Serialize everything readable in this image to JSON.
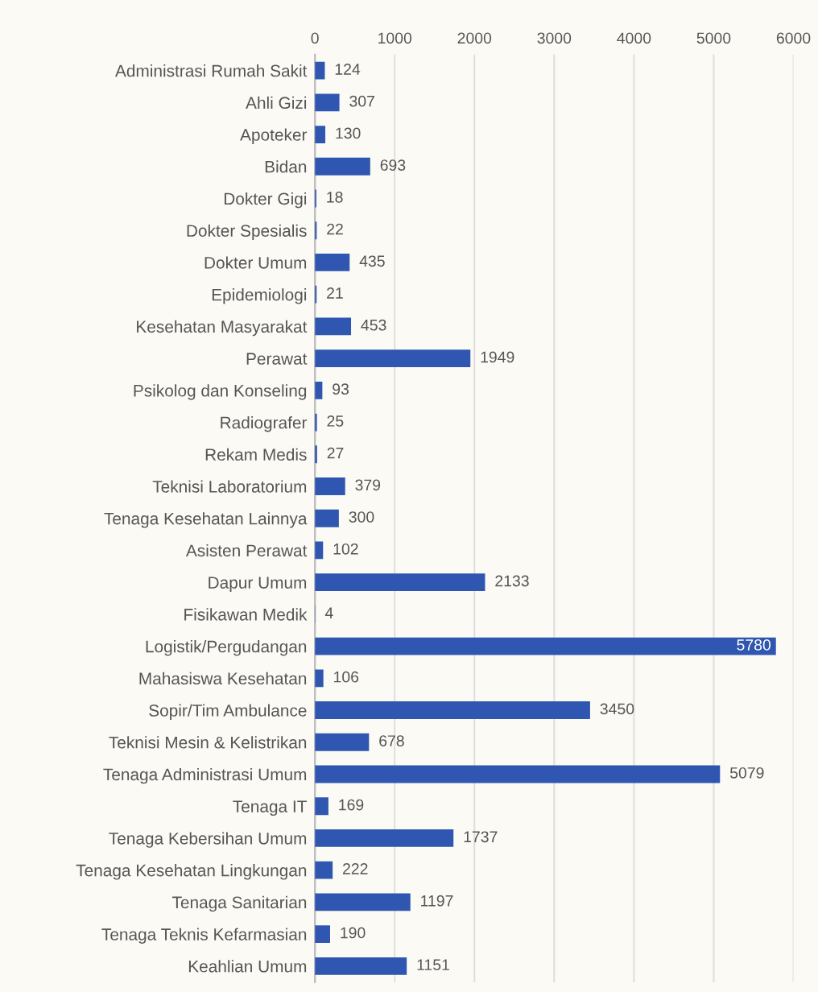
{
  "chart_data": {
    "type": "bar",
    "orientation": "horizontal",
    "categories": [
      "Administrasi Rumah Sakit",
      "Ahli Gizi",
      "Apoteker",
      "Bidan",
      "Dokter Gigi",
      "Dokter Spesialis",
      "Dokter Umum",
      "Epidemiologi",
      "Kesehatan Masyarakat",
      "Perawat",
      "Psikolog dan Konseling",
      "Radiografer",
      "Rekam Medis",
      "Teknisi Laboratorium",
      "Tenaga Kesehatan Lainnya",
      "Asisten Perawat",
      "Dapur Umum",
      "Fisikawan Medik",
      "Logistik/Pergudangan",
      "Mahasiswa Kesehatan",
      "Sopir/Tim Ambulance",
      "Teknisi Mesin & Kelistrikan",
      "Tenaga Administrasi Umum",
      "Tenaga IT",
      "Tenaga Kebersihan Umum",
      "Tenaga Kesehatan Lingkungan",
      "Tenaga Sanitarian",
      "Tenaga Teknis Kefarmasian",
      "Keahlian Umum"
    ],
    "values": [
      124,
      307,
      130,
      693,
      18,
      22,
      435,
      21,
      453,
      1949,
      93,
      25,
      27,
      379,
      300,
      102,
      2133,
      4,
      5780,
      106,
      3450,
      678,
      5079,
      169,
      1737,
      222,
      1197,
      190,
      1151
    ],
    "color": "#2f56b0",
    "xlim": [
      0,
      6000
    ],
    "xticks": [
      0,
      1000,
      2000,
      3000,
      4000,
      5000,
      6000
    ],
    "grid": "x",
    "data_labels": true
  }
}
